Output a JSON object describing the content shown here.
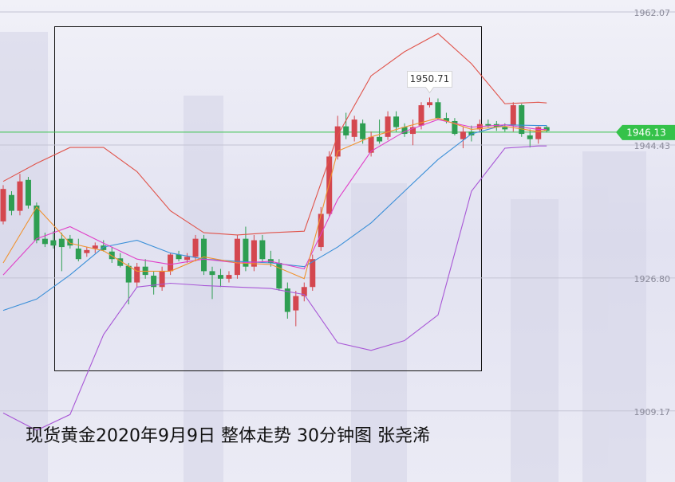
{
  "chart_data": {
    "type": "candlestick",
    "title": "现货黄金2020年9月9日 整体走势 30分钟图 张尧浠",
    "open": [
      1934.3,
      1937.8,
      1935.7,
      1939.8,
      1936.4,
      1932.0,
      1931.8,
      1932.0,
      1932.0,
      1930.7,
      1930.1,
      1930.7,
      1931.1,
      1930.3,
      1929.4,
      1928.4,
      1926.2,
      1928.3,
      1927.1,
      1925.6,
      1927.7,
      1929.9,
      1929.2,
      1929.6,
      1932.0,
      1927.7,
      1927.2,
      1926.7,
      1927.2,
      1932.0,
      1928.3,
      1931.8,
      1929.3,
      1928.8,
      1925.4,
      1922.5,
      1924.4,
      1925.6,
      1930.9,
      1935.3,
      1942.9,
      1946.9,
      1945.5,
      1947.3,
      1943.4,
      1945.5,
      1945.5,
      1948.2,
      1946.8,
      1945.9,
      1947.0,
      1949.7,
      1950.1,
      1948.0,
      1947.6,
      1945.2,
      1946.2,
      1946.5,
      1947.2,
      1947.2,
      1946.8,
      1947.0,
      1949.7,
      1945.7,
      1945.2,
      1946.8
    ],
    "high": [
      1939.1,
      1938.3,
      1940.6,
      1940.2,
      1936.8,
      1932.8,
      1933.0,
      1932.8,
      1932.5,
      1932.0,
      1930.9,
      1931.5,
      1931.8,
      1930.9,
      1930.1,
      1928.8,
      1928.8,
      1929.3,
      1927.7,
      1928.3,
      1930.1,
      1930.4,
      1930.1,
      1932.5,
      1932.5,
      1928.3,
      1928.0,
      1927.7,
      1932.5,
      1933.6,
      1932.5,
      1932.5,
      1930.4,
      1929.3,
      1926.2,
      1925.1,
      1926.2,
      1929.9,
      1936.2,
      1943.6,
      1948.3,
      1948.7,
      1948.3,
      1947.8,
      1946.2,
      1947.8,
      1948.9,
      1948.9,
      1947.3,
      1947.8,
      1950.1,
      1950.71,
      1950.6,
      1948.7,
      1948.0,
      1946.8,
      1947.0,
      1947.8,
      1947.8,
      1947.6,
      1947.3,
      1950.1,
      1949.9,
      1946.5,
      1946.9,
      1947.0
    ],
    "low": [
      1933.9,
      1935.1,
      1935.1,
      1936.0,
      1931.4,
      1930.9,
      1930.7,
      1927.7,
      1930.7,
      1929.0,
      1929.6,
      1930.1,
      1930.3,
      1928.8,
      1928.2,
      1923.3,
      1925.6,
      1926.7,
      1924.6,
      1925.1,
      1927.2,
      1929.0,
      1928.8,
      1929.0,
      1927.2,
      1924.0,
      1925.6,
      1926.2,
      1926.7,
      1927.7,
      1927.7,
      1928.8,
      1928.3,
      1925.1,
      1921.4,
      1920.4,
      1923.7,
      1925.1,
      1930.4,
      1934.9,
      1942.5,
      1945.2,
      1944.9,
      1944.6,
      1942.9,
      1944.6,
      1945.1,
      1946.2,
      1945.5,
      1944.4,
      1946.5,
      1949.4,
      1947.8,
      1947.3,
      1945.7,
      1944.0,
      1944.9,
      1946.2,
      1946.8,
      1946.3,
      1946.2,
      1946.2,
      1945.5,
      1944.1,
      1944.6,
      1946.1
    ],
    "close": [
      1938.6,
      1935.7,
      1939.6,
      1936.4,
      1931.8,
      1931.3,
      1931.1,
      1930.9,
      1931.1,
      1929.3,
      1930.5,
      1931.1,
      1930.5,
      1929.3,
      1928.4,
      1926.2,
      1928.3,
      1927.2,
      1925.6,
      1927.7,
      1929.9,
      1929.3,
      1929.6,
      1932.0,
      1927.7,
      1927.2,
      1926.7,
      1927.2,
      1932.0,
      1928.3,
      1931.8,
      1929.3,
      1928.8,
      1925.4,
      1922.3,
      1924.4,
      1925.6,
      1929.3,
      1935.3,
      1942.9,
      1946.9,
      1945.7,
      1947.8,
      1945.2,
      1945.5,
      1944.9,
      1948.2,
      1946.8,
      1945.9,
      1946.8,
      1949.7,
      1950.1,
      1948.0,
      1947.6,
      1945.9,
      1946.2,
      1945.7,
      1947.2,
      1947.0,
      1946.8,
      1946.5,
      1949.7,
      1945.9,
      1945.2,
      1946.8,
      1946.3
    ],
    "up_color": "#d4474f",
    "down_color": "#2e9e52",
    "overlays": [
      {
        "color": "#e0534a",
        "x": [
          0,
          4,
          8,
          12,
          16,
          20,
          24,
          28,
          32,
          36,
          40,
          44,
          48,
          52,
          56,
          60,
          64,
          65
        ],
        "values": [
          1939.6,
          1942.0,
          1944.1,
          1944.1,
          1940.9,
          1935.7,
          1932.8,
          1932.5,
          1932.8,
          1933.0,
          1945.7,
          1953.6,
          1956.8,
          1959.2,
          1955.2,
          1949.9,
          1950.1,
          1950.0
        ]
      },
      {
        "color": "#a857d6",
        "x": [
          0,
          4,
          8,
          12,
          16,
          20,
          24,
          28,
          32,
          36,
          40,
          44,
          48,
          52,
          56,
          60,
          64,
          65
        ],
        "values": [
          1908.9,
          1906.6,
          1908.7,
          1919.3,
          1925.6,
          1926.1,
          1925.8,
          1925.6,
          1925.4,
          1924.6,
          1918.2,
          1917.2,
          1918.5,
          1921.9,
          1938.3,
          1944.0,
          1944.3,
          1944.3
        ]
      },
      {
        "color": "#3a8fd8",
        "x": [
          0,
          4,
          8,
          12,
          16,
          20,
          24,
          28,
          32,
          36,
          40,
          44,
          48,
          52,
          56,
          60,
          64,
          65
        ],
        "values": [
          1922.5,
          1924.0,
          1927.2,
          1930.9,
          1931.8,
          1930.1,
          1929.3,
          1929.0,
          1928.8,
          1928.3,
          1930.9,
          1934.1,
          1938.3,
          1942.5,
          1945.9,
          1947.1,
          1947.0,
          1947.0
        ]
      },
      {
        "color": "#e040c8",
        "x": [
          0,
          4,
          8,
          12,
          16,
          20,
          24,
          28,
          32,
          36,
          40,
          44,
          48,
          52,
          56,
          60,
          64,
          65
        ],
        "values": [
          1927.2,
          1932.0,
          1933.6,
          1931.4,
          1929.3,
          1928.6,
          1929.3,
          1928.8,
          1929.0,
          1928.0,
          1937.2,
          1943.6,
          1946.2,
          1947.8,
          1946.8,
          1947.1,
          1946.5,
          1946.5
        ]
      },
      {
        "color": "#f0922e",
        "x": [
          0,
          4,
          8,
          12,
          16,
          20,
          24,
          28,
          32,
          36,
          40,
          44,
          48,
          52,
          56,
          60,
          64,
          65
        ],
        "values": [
          1928.8,
          1936.2,
          1931.4,
          1930.4,
          1927.7,
          1927.7,
          1929.6,
          1928.8,
          1928.6,
          1926.7,
          1943.6,
          1945.5,
          1946.8,
          1948.0,
          1946.5,
          1946.9,
          1946.2,
          1946.4
        ]
      }
    ],
    "high_label": 1950.71,
    "high_label_index": 51,
    "current_price": 1946.13,
    "current_color": "#35c24a",
    "ylim": [
      1899.75,
      1963.65
    ],
    "yticks": [
      1962.07,
      1944.43,
      {
        "value": 1926.8,
        "label": "1926.80"
      },
      1909.17
    ],
    "grid": true
  }
}
